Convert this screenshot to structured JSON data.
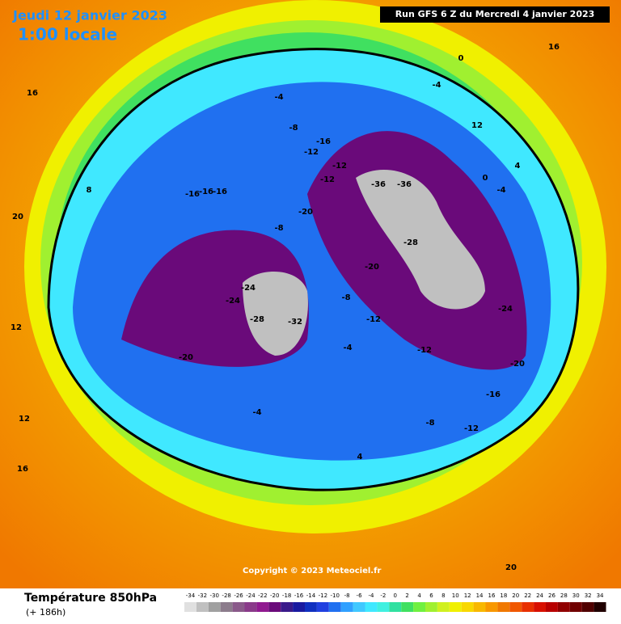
{
  "header": {
    "valid_date": "Jeudi 12 janvier 2023",
    "local_time": "1:00 locale",
    "run": "Run GFS 6 Z du Mercredi 4 janvier 2023"
  },
  "footer": {
    "field": "Température 850hPa",
    "lead": "(+ 186h)",
    "copyright": "Copyright © 2023 Meteociel.fr"
  },
  "colorbar": {
    "ticks": [
      -34,
      -32,
      -30,
      -28,
      -26,
      -24,
      -22,
      -20,
      -18,
      -16,
      -14,
      -12,
      -10,
      -8,
      -6,
      -4,
      -2,
      0,
      2,
      4,
      6,
      8,
      10,
      12,
      14,
      16,
      18,
      20,
      22,
      24,
      26,
      28,
      30,
      32,
      34
    ],
    "colors": [
      "#e0e0e0",
      "#c0c0c0",
      "#a0a0a0",
      "#8c7c8c",
      "#8a5a8a",
      "#8a3a8a",
      "#901a90",
      "#6a0a7a",
      "#3a1a8a",
      "#1a1aa0",
      "#1030c0",
      "#2040e0",
      "#2070f0",
      "#30a0ff",
      "#40c8ff",
      "#40e8ff",
      "#40f0e0",
      "#30e0a0",
      "#40e060",
      "#70f040",
      "#a0f030",
      "#d0f020",
      "#f0f000",
      "#f8d800",
      "#f8b800",
      "#f89800",
      "#f07800",
      "#f05800",
      "#e83000",
      "#d81000",
      "#b80000",
      "#900000",
      "#700000",
      "#500000",
      "#200000"
    ]
  },
  "map": {
    "contour_labels": [
      "-16",
      "-16",
      "-16",
      "-12",
      "-12",
      "-12",
      "-8",
      "-8",
      "-4",
      "-4",
      "-4",
      "-20",
      "-20",
      "-20",
      "-24",
      "-24",
      "-28",
      "-28",
      "-32",
      "-36",
      "-36",
      "-12",
      "-12",
      "-16",
      "-16",
      "-20",
      "-24",
      "-8",
      "-4",
      "0",
      "0",
      "4",
      "4",
      "8",
      "12",
      "12",
      "12",
      "16",
      "16",
      "16",
      "20",
      "20",
      "-4",
      "-8",
      "-12"
    ]
  }
}
